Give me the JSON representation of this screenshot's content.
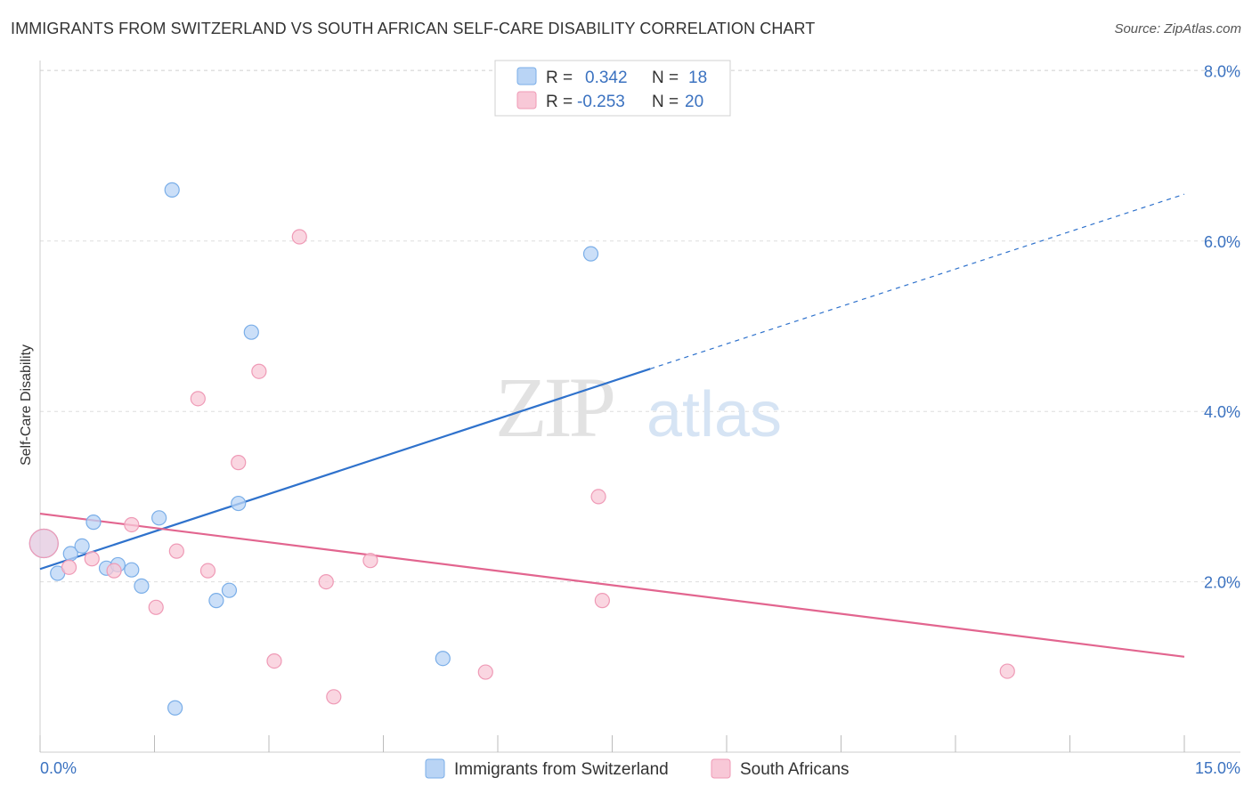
{
  "header": {
    "title": "IMMIGRANTS FROM SWITZERLAND VS SOUTH AFRICAN SELF-CARE DISABILITY CORRELATION CHART",
    "source": "Source: ZipAtlas.com"
  },
  "watermark": {
    "zip": "ZIP",
    "atlas": "atlas"
  },
  "chart_data": {
    "type": "scatter",
    "title": "IMMIGRANTS FROM SWITZERLAND VS SOUTH AFRICAN SELF-CARE DISABILITY CORRELATION CHART",
    "xlabel": "",
    "ylabel": "Self-Care Disability",
    "xlim": [
      0,
      15
    ],
    "ylim": [
      0,
      8.3
    ],
    "x_tick_labels": [
      "0.0%",
      "15.0%"
    ],
    "y_ticks": [
      2,
      4,
      6,
      8
    ],
    "y_tick_labels": [
      "2.0%",
      "4.0%",
      "6.0%",
      "8.0%"
    ],
    "legend": {
      "r_label": "R =",
      "n_label": "N =",
      "entries": [
        {
          "name": "Immigrants from Switzerland",
          "r": "0.342",
          "n": "18"
        },
        {
          "name": "South Africans",
          "r": "-0.253",
          "n": "20"
        }
      ]
    },
    "series": [
      {
        "name": "Immigrants from Switzerland",
        "color": "#7aaee8",
        "fill": "#b9d4f5",
        "line_color": "#2f72cc",
        "points": [
          {
            "x": 0.05,
            "y": 2.45,
            "big": true
          },
          {
            "x": 0.23,
            "y": 2.1
          },
          {
            "x": 0.4,
            "y": 2.33
          },
          {
            "x": 0.55,
            "y": 2.42
          },
          {
            "x": 0.7,
            "y": 2.7
          },
          {
            "x": 0.87,
            "y": 2.16
          },
          {
            "x": 1.02,
            "y": 2.2
          },
          {
            "x": 1.2,
            "y": 2.14
          },
          {
            "x": 1.33,
            "y": 1.95
          },
          {
            "x": 1.56,
            "y": 2.75
          },
          {
            "x": 1.73,
            "y": 6.6
          },
          {
            "x": 1.77,
            "y": 0.52
          },
          {
            "x": 2.31,
            "y": 1.78
          },
          {
            "x": 2.48,
            "y": 1.9
          },
          {
            "x": 2.6,
            "y": 2.92
          },
          {
            "x": 2.77,
            "y": 4.93
          },
          {
            "x": 5.28,
            "y": 1.1
          },
          {
            "x": 7.22,
            "y": 5.85
          }
        ],
        "trend": {
          "x0": 0,
          "y0": 2.15,
          "x1": 8.0,
          "y1": 4.5,
          "dash_x1": 15.0,
          "dash_y1": 6.55
        }
      },
      {
        "name": "South Africans",
        "color": "#ef9ab6",
        "fill": "#f8c8d7",
        "line_color": "#e2658f",
        "points": [
          {
            "x": 0.05,
            "y": 2.45,
            "big": true
          },
          {
            "x": 0.38,
            "y": 2.17
          },
          {
            "x": 0.68,
            "y": 2.27
          },
          {
            "x": 0.97,
            "y": 2.13
          },
          {
            "x": 1.2,
            "y": 2.67
          },
          {
            "x": 1.52,
            "y": 1.7
          },
          {
            "x": 1.79,
            "y": 2.36
          },
          {
            "x": 2.07,
            "y": 4.15
          },
          {
            "x": 2.2,
            "y": 2.13
          },
          {
            "x": 2.6,
            "y": 3.4
          },
          {
            "x": 3.07,
            "y": 1.07
          },
          {
            "x": 2.87,
            "y": 4.47
          },
          {
            "x": 3.4,
            "y": 6.05
          },
          {
            "x": 3.75,
            "y": 2.0
          },
          {
            "x": 3.85,
            "y": 0.65
          },
          {
            "x": 4.33,
            "y": 2.25
          },
          {
            "x": 5.84,
            "y": 0.94
          },
          {
            "x": 7.32,
            "y": 3.0
          },
          {
            "x": 7.37,
            "y": 1.78
          },
          {
            "x": 12.68,
            "y": 0.95
          }
        ],
        "trend": {
          "x0": 0,
          "y0": 2.8,
          "x1": 15.0,
          "y1": 1.12
        }
      }
    ]
  }
}
